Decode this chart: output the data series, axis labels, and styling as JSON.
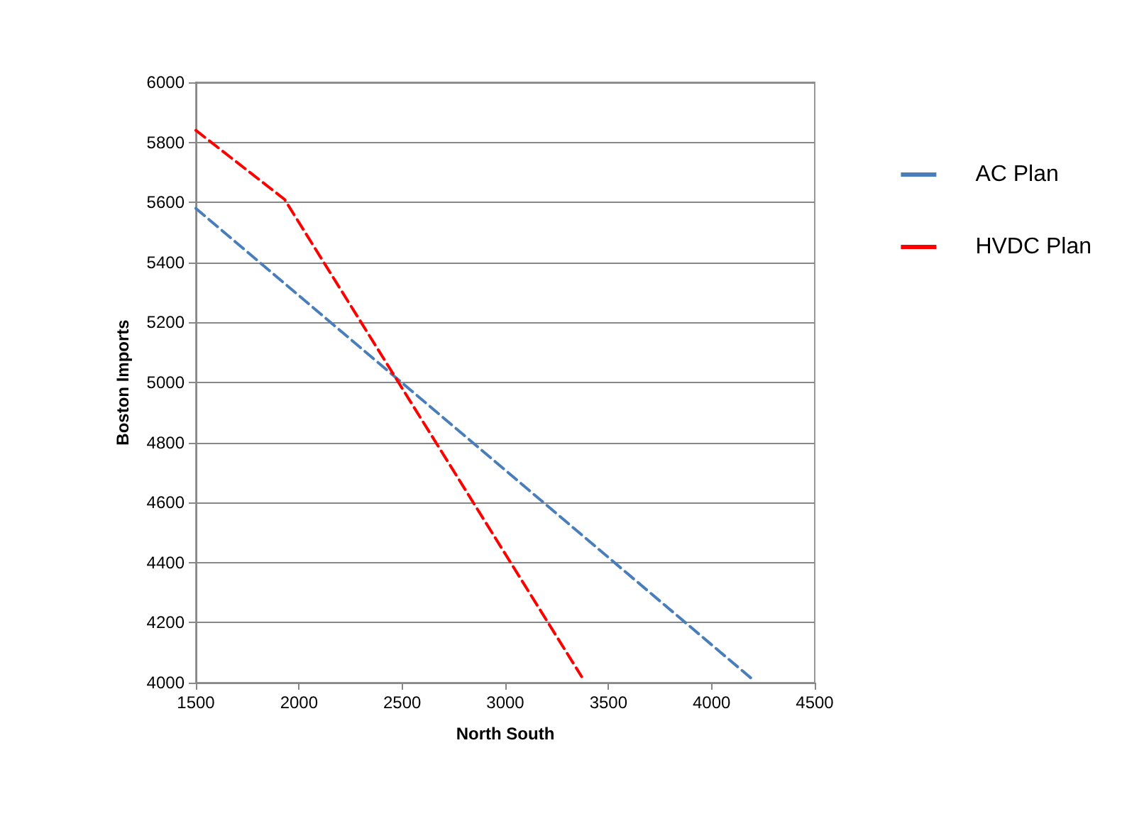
{
  "chart_data": {
    "type": "line",
    "xlabel": "North South",
    "ylabel": "Boston Imports",
    "series": [
      {
        "name": "AC Plan",
        "color": "#4a7ebb",
        "x": [
          1500,
          4200
        ],
        "values": [
          5580,
          4010
        ]
      },
      {
        "name": "HVDC Plan",
        "color": "#ff0000",
        "x": [
          1500,
          1930,
          3370
        ],
        "values": [
          5840,
          5610,
          4020
        ]
      }
    ],
    "xlim": [
      1500,
      4500
    ],
    "xticks": [
      1500,
      2000,
      2500,
      3000,
      3500,
      4000,
      4500
    ],
    "ylim": [
      4000,
      6000
    ],
    "yticks": [
      4000,
      4200,
      4400,
      4600,
      4800,
      5000,
      5200,
      5400,
      5600,
      5800,
      6000
    ],
    "grid": "y",
    "legend": "right",
    "marker": "none",
    "line_style": "dashed"
  }
}
